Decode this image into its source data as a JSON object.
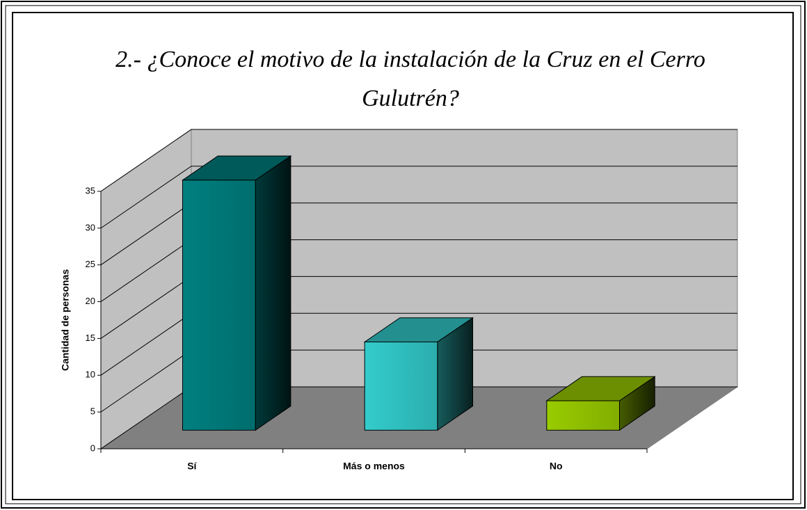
{
  "chart_data": {
    "type": "bar3d",
    "title": "2.- ¿Conoce el motivo de la instalación de la Cruz en el Cerro Gulutrén?",
    "y_label": "Cantidad de personas",
    "categories": [
      "Sí",
      "Más o menos",
      "No"
    ],
    "values": [
      34,
      12,
      4
    ],
    "colors": [
      "#008080",
      "#33cccc",
      "#99cc00"
    ],
    "ylim": [
      0,
      35
    ],
    "yticks": [
      0,
      5,
      10,
      15,
      20,
      25,
      30,
      35
    ],
    "grid": true
  }
}
